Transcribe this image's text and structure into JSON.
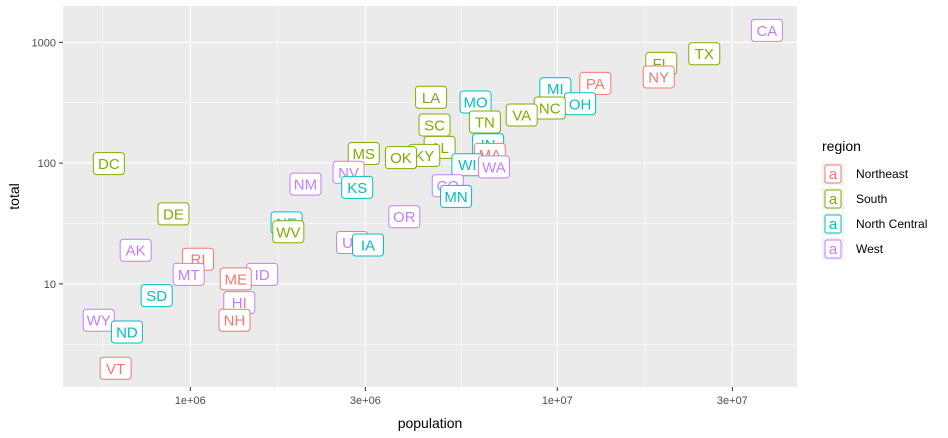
{
  "chart_data": {
    "type": "scatter",
    "xlabel": "population",
    "ylabel": "total",
    "x_scale": "log10",
    "y_scale": "log10",
    "xlim": [
      450000,
      45000000
    ],
    "ylim": [
      1.4,
      2000
    ],
    "x_ticks": [
      {
        "value": 1000000,
        "label": "1e+06"
      },
      {
        "value": 3000000,
        "label": "3e+06"
      },
      {
        "value": 10000000,
        "label": "1e+07"
      },
      {
        "value": 30000000,
        "label": "3e+07"
      }
    ],
    "y_ticks": [
      {
        "value": 10,
        "label": "10"
      },
      {
        "value": 100,
        "label": "100"
      },
      {
        "value": 1000,
        "label": "1000"
      }
    ],
    "grid": true,
    "legend": {
      "title": "region",
      "position": "right",
      "glyph": "a",
      "entries": [
        {
          "name": "Northeast",
          "color": "#F8766D"
        },
        {
          "name": "South",
          "color": "#7CAE00"
        },
        {
          "name": "North Central",
          "color": "#00BFC4"
        },
        {
          "name": "West",
          "color": "#C77CFF"
        }
      ]
    },
    "points": [
      {
        "label": "CA",
        "region": "West",
        "x": 37250000,
        "y": 1257
      },
      {
        "label": "TX",
        "region": "South",
        "x": 25150000,
        "y": 805
      },
      {
        "label": "FL",
        "region": "South",
        "x": 19200000,
        "y": 669
      },
      {
        "label": "NY",
        "region": "Northeast",
        "x": 18900000,
        "y": 517
      },
      {
        "label": "PA",
        "region": "Northeast",
        "x": 12700000,
        "y": 457
      },
      {
        "label": "MI",
        "region": "North Central",
        "x": 9880000,
        "y": 413
      },
      {
        "label": "OH",
        "region": "North Central",
        "x": 11540000,
        "y": 310
      },
      {
        "label": "NC",
        "region": "South",
        "x": 9540000,
        "y": 286
      },
      {
        "label": "VA",
        "region": "South",
        "x": 8000000,
        "y": 250
      },
      {
        "label": "MO",
        "region": "North Central",
        "x": 5990000,
        "y": 321
      },
      {
        "label": "LA",
        "region": "South",
        "x": 4530000,
        "y": 351
      },
      {
        "label": "SC",
        "region": "South",
        "x": 4630000,
        "y": 207
      },
      {
        "label": "TN",
        "region": "South",
        "x": 6350000,
        "y": 219
      },
      {
        "label": "AL",
        "region": "South",
        "x": 4780000,
        "y": 135
      },
      {
        "label": "IN",
        "region": "North Central",
        "x": 6480000,
        "y": 142
      },
      {
        "label": "MA",
        "region": "Northeast",
        "x": 6550000,
        "y": 118
      },
      {
        "label": "KY",
        "region": "South",
        "x": 4340000,
        "y": 116
      },
      {
        "label": "MS",
        "region": "South",
        "x": 2970000,
        "y": 120
      },
      {
        "label": "OK",
        "region": "South",
        "x": 3750000,
        "y": 111
      },
      {
        "label": "WI",
        "region": "North Central",
        "x": 5690000,
        "y": 97
      },
      {
        "label": "WA",
        "region": "West",
        "x": 6720000,
        "y": 93
      },
      {
        "label": "NV",
        "region": "West",
        "x": 2700000,
        "y": 84
      },
      {
        "label": "KS",
        "region": "North Central",
        "x": 2850000,
        "y": 63
      },
      {
        "label": "CO",
        "region": "West",
        "x": 5030000,
        "y": 65
      },
      {
        "label": "MN",
        "region": "North Central",
        "x": 5300000,
        "y": 53
      },
      {
        "label": "NM",
        "region": "West",
        "x": 2060000,
        "y": 67
      },
      {
        "label": "DC",
        "region": "South",
        "x": 600000,
        "y": 99
      },
      {
        "label": "OR",
        "region": "West",
        "x": 3830000,
        "y": 36
      },
      {
        "label": "DE",
        "region": "South",
        "x": 900000,
        "y": 38
      },
      {
        "label": "NE",
        "region": "North Central",
        "x": 1830000,
        "y": 32
      },
      {
        "label": "WV",
        "region": "South",
        "x": 1850000,
        "y": 27
      },
      {
        "label": "UT",
        "region": "West",
        "x": 2760000,
        "y": 22
      },
      {
        "label": "IA",
        "region": "North Central",
        "x": 3050000,
        "y": 21
      },
      {
        "label": "AK",
        "region": "West",
        "x": 710000,
        "y": 19
      },
      {
        "label": "RI",
        "region": "Northeast",
        "x": 1050000,
        "y": 16
      },
      {
        "label": "MT",
        "region": "West",
        "x": 990000,
        "y": 12
      },
      {
        "label": "ID",
        "region": "West",
        "x": 1570000,
        "y": 12
      },
      {
        "label": "ME",
        "region": "Northeast",
        "x": 1330000,
        "y": 11
      },
      {
        "label": "SD",
        "region": "North Central",
        "x": 810000,
        "y": 8
      },
      {
        "label": "HI",
        "region": "West",
        "x": 1360000,
        "y": 7
      },
      {
        "label": "NH",
        "region": "Northeast",
        "x": 1320000,
        "y": 5
      },
      {
        "label": "WY",
        "region": "West",
        "x": 563000,
        "y": 5
      },
      {
        "label": "ND",
        "region": "North Central",
        "x": 672000,
        "y": 4
      },
      {
        "label": "VT",
        "region": "Northeast",
        "x": 626000,
        "y": 2
      }
    ]
  }
}
